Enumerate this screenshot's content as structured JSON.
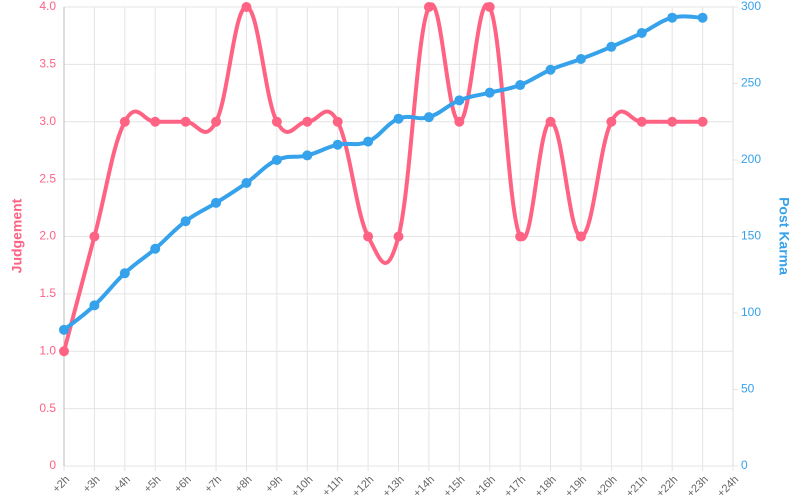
{
  "chart_data": {
    "type": "line",
    "categories": [
      "+2h",
      "+3h",
      "+4h",
      "+5h",
      "+6h",
      "+7h",
      "+8h",
      "+9h",
      "+10h",
      "+11h",
      "+12h",
      "+13h",
      "+14h",
      "+15h",
      "+16h",
      "+17h",
      "+18h",
      "+19h",
      "+20h",
      "+21h",
      "+22h",
      "+23h",
      "+24h"
    ],
    "series": [
      {
        "name": "Judgement",
        "color": "#ff6384",
        "axis": "y",
        "values": [
          1,
          2,
          3,
          3,
          3,
          3,
          4,
          3,
          3,
          3,
          2,
          2,
          4,
          3,
          4,
          2,
          3,
          2,
          3,
          3,
          3,
          3,
          null
        ]
      },
      {
        "name": "Post Karma",
        "color": "#36a2eb",
        "axis": "y2",
        "values": [
          89,
          105,
          126,
          142,
          160,
          172,
          185,
          200,
          203,
          210,
          212,
          227,
          228,
          239,
          244,
          249,
          259,
          266,
          274,
          283,
          293,
          293,
          null
        ]
      }
    ],
    "ylabel": "Judgement",
    "y2label": "Post Karma",
    "ylim": [
      0,
      4
    ],
    "yticks": [
      0,
      0.5,
      {
        "value": 1,
        "label": "1.0"
      },
      1.5,
      {
        "value": 2,
        "label": "2.0"
      },
      2.5,
      {
        "value": 3,
        "label": "3.0"
      },
      3.5,
      {
        "value": 4,
        "label": "4.0"
      }
    ],
    "y2lim": [
      0,
      300
    ],
    "y2ticks": [
      0,
      50,
      100,
      150,
      200,
      250,
      300
    ],
    "grid": true
  }
}
